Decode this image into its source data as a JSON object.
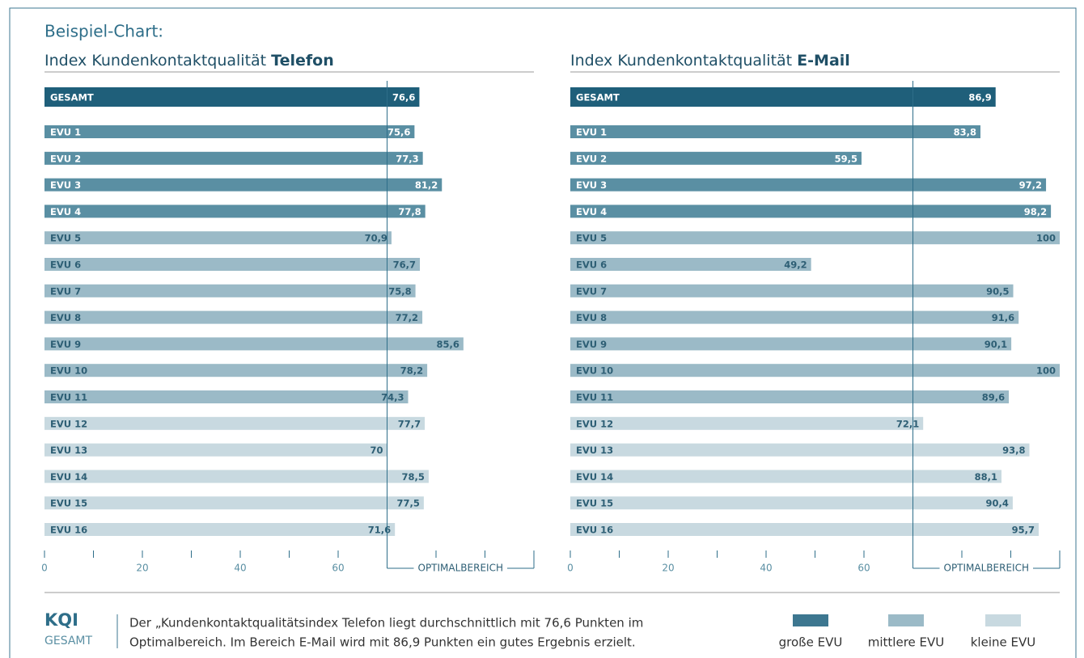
{
  "header": "Beispiel-Chart:",
  "chart_data": [
    {
      "type": "bar",
      "title": "Index Kundenkontaktqualität",
      "title_emphasis": "Telefon",
      "categories": [
        "GESAMT",
        "EVU 1",
        "EVU 2",
        "EVU 3",
        "EVU 4",
        "EVU 5",
        "EVU 6",
        "EVU 7",
        "EVU 8",
        "EVU 9",
        "EVU 10",
        "EVU 11",
        "EVU 12",
        "EVU 13",
        "EVU 14",
        "EVU 15",
        "EVU 16"
      ],
      "values": [
        76.6,
        75.6,
        77.3,
        81.2,
        77.8,
        70.9,
        76.7,
        75.8,
        77.2,
        85.6,
        78.2,
        74.3,
        77.7,
        70,
        78.5,
        77.5,
        71.6
      ],
      "value_labels": [
        "76,6",
        "75,6",
        "77,3",
        "81,2",
        "77,8",
        "70,9",
        "76,7",
        "75,8",
        "77,2",
        "85,6",
        "78,2",
        "74,3",
        "77,7",
        "70",
        "78,5",
        "77,5",
        "71,6"
      ],
      "colors": [
        "#1f5f7a",
        "#5a8fa3",
        "#5a8fa3",
        "#5a8fa3",
        "#5a8fa3",
        "#9bbac7",
        "#9bbac7",
        "#9bbac7",
        "#9bbac7",
        "#9bbac7",
        "#9bbac7",
        "#9bbac7",
        "#c8d9e0",
        "#c8d9e0",
        "#c8d9e0",
        "#c8d9e0",
        "#c8d9e0"
      ],
      "xlim": [
        0,
        100
      ],
      "xticks": [
        0,
        20,
        40,
        60
      ],
      "minor_xticks": [
        10,
        30,
        50,
        80,
        90
      ],
      "optimal_range": [
        70,
        100
      ],
      "optimal_label": "OPTIMALBEREICH"
    },
    {
      "type": "bar",
      "title": "Index Kundenkontaktqualität",
      "title_emphasis": "E-Mail",
      "categories": [
        "GESAMT",
        "EVU 1",
        "EVU 2",
        "EVU 3",
        "EVU 4",
        "EVU 5",
        "EVU 6",
        "EVU 7",
        "EVU 8",
        "EVU 9",
        "EVU 10",
        "EVU 11",
        "EVU 12",
        "EVU 13",
        "EVU 14",
        "EVU 15",
        "EVU 16"
      ],
      "values": [
        86.9,
        83.8,
        59.5,
        97.2,
        98.2,
        100,
        49.2,
        90.5,
        91.6,
        90.1,
        100,
        89.6,
        72.1,
        93.8,
        88.1,
        90.4,
        95.7
      ],
      "value_labels": [
        "86,9",
        "83,8",
        "59,5",
        "97,2",
        "98,2",
        "100",
        "49,2",
        "90,5",
        "91,6",
        "90,1",
        "100",
        "89,6",
        "72,1",
        "93,8",
        "88,1",
        "90,4",
        "95,7"
      ],
      "colors": [
        "#1f5f7a",
        "#5a8fa3",
        "#5a8fa3",
        "#5a8fa3",
        "#5a8fa3",
        "#9bbac7",
        "#9bbac7",
        "#9bbac7",
        "#9bbac7",
        "#9bbac7",
        "#9bbac7",
        "#9bbac7",
        "#c8d9e0",
        "#c8d9e0",
        "#c8d9e0",
        "#c8d9e0",
        "#c8d9e0"
      ],
      "xlim": [
        0,
        100
      ],
      "xticks": [
        0,
        20,
        40,
        60
      ],
      "minor_xticks": [
        10,
        30,
        50,
        80,
        90
      ],
      "optimal_range": [
        70,
        100
      ],
      "optimal_label": "OPTIMALBEREICH"
    }
  ],
  "footer": {
    "kqi": "KQI",
    "kqi_sub": "GESAMT",
    "text": [
      "Der „Kundenkontaktqualitätsindex Telefon liegt durchschnittlich mit 76,6 Punkten im",
      "Optimalbereich. Im Bereich E-Mail wird mit 86,9 Punkten ein gutes Ergebnis erzielt."
    ]
  },
  "legend": [
    {
      "name": "große EVU",
      "color": "#3d7790"
    },
    {
      "name": "mittlere EVU",
      "color": "#9bbac7"
    },
    {
      "name": "kleine EVU",
      "color": "#c8d9e0"
    }
  ]
}
